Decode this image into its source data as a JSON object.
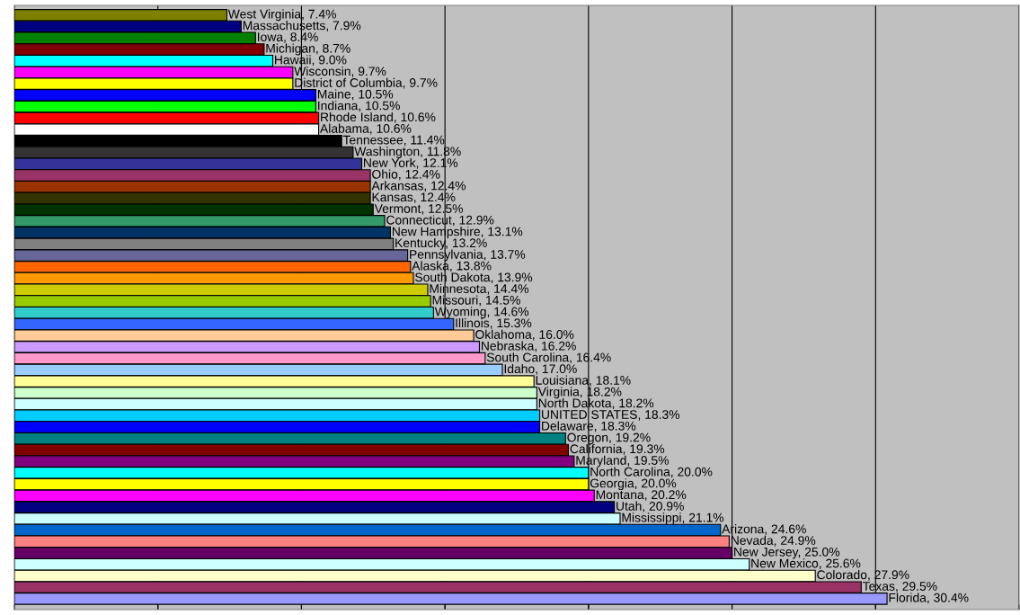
{
  "chart_data": {
    "type": "bar",
    "orientation": "horizontal",
    "categories": [
      null,
      null,
      null,
      null,
      null,
      null,
      null,
      null,
      null,
      null,
      null,
      null,
      null,
      null,
      null,
      null,
      null,
      null,
      null,
      null,
      null,
      null,
      null,
      null,
      null,
      null,
      null,
      null,
      null,
      null,
      null,
      null,
      null,
      null,
      null,
      null,
      null,
      null,
      null,
      null,
      null,
      null,
      null,
      null,
      null,
      null,
      null,
      null,
      null,
      null,
      null,
      null
    ],
    "values": [
      7.4,
      7.9,
      8.4,
      8.7,
      9.0,
      9.7,
      9.7,
      10.5,
      10.5,
      10.6,
      10.6,
      11.4,
      11.8,
      12.1,
      12.4,
      12.4,
      12.4,
      12.5,
      12.9,
      13.1,
      13.2,
      13.7,
      13.8,
      13.9,
      14.4,
      14.5,
      14.6,
      15.3,
      16.0,
      16.2,
      16.4,
      17.0,
      18.1,
      18.2,
      18.2,
      18.3,
      18.3,
      19.2,
      19.3,
      19.5,
      20.0,
      20.0,
      20.2,
      20.9,
      21.1,
      24.6,
      24.9,
      25.0,
      25.6,
      27.9,
      29.5,
      30.4
    ],
    "value_labels": [
      "West Virginia, 7.4%",
      "Massachusetts, 7.9%",
      "Iowa, 8.4%",
      "Michigan, 8.7%",
      "Hawaii, 9.0%",
      "Wisconsin, 9.7%",
      "District of Columbia, 9.7%",
      "Maine, 10.5%",
      "Indiana, 10.5%",
      "Rhode Island, 10.6%",
      "Alabama, 10.6%",
      "Tennessee, 11.4%",
      "Washington, 11.8%",
      "New York, 12.1%",
      "Ohio, 12.4%",
      "Arkansas, 12.4%",
      "Kansas, 12.4%",
      "Vermont, 12.5%",
      "Connecticut, 12.9%",
      "New Hampshire, 13.1%",
      "Kentucky, 13.2%",
      "Pennsylvania, 13.7%",
      "Alaska, 13.8%",
      "South Dakota, 13.9%",
      "Minnesota, 14.4%",
      "Missouri, 14.5%",
      "Wyoming, 14.6%",
      "Illinois, 15.3%",
      "Oklahoma, 16.0%",
      "Nebraska, 16.2%",
      "South Carolina, 16.4%",
      "Idaho, 17.0%",
      "Louisiana, 18.1%",
      "Virginia, 18.2%",
      "North Dakota, 18.2%",
      "UNITED STATES, 18.3%",
      "Delaware, 18.3%",
      "Oregon, 19.2%",
      "California, 19.3%",
      "Maryland, 19.5%",
      "North Carolina, 20.0%",
      "Georgia, 20.0%",
      "Montana, 20.2%",
      "Utah, 20.9%",
      "Mississippi, 21.1%",
      "Arizona, 24.6%",
      "Nevada, 24.9%",
      "New Jersey, 25.0%",
      "New Mexico, 25.6%",
      "Colorado, 27.9%",
      "Texas, 29.5%",
      "Florida, 30.4%"
    ],
    "colors": [
      "#808000",
      "#000080",
      "#008000",
      "#800000",
      "#00ffff",
      "#ff00ff",
      "#ffff00",
      "#0000ff",
      "#00ff00",
      "#ff0000",
      "#ffffff",
      "#000000",
      "#333333",
      "#333399",
      "#993366",
      "#993300",
      "#333300",
      "#003300",
      "#339966",
      "#003366",
      "#808080",
      "#666699",
      "#ff6600",
      "#ff9900",
      "#cccc00",
      "#99cc00",
      "#33cccc",
      "#3366ff",
      "#ffcc99",
      "#cc99ff",
      "#ff99cc",
      "#99ccff",
      "#ffff99",
      "#ccffcc",
      "#ccffff",
      "#00ccff",
      "#0000ff",
      "#008080",
      "#800000",
      "#800080",
      "#00ffff",
      "#ffff00",
      "#ff00ff",
      "#000080",
      "#ccffff",
      "#0066cc",
      "#ff8080",
      "#660066",
      "#ccffff",
      "#ffffcc",
      "#993366",
      "#9999ff"
    ],
    "xlim": [
      0,
      35
    ],
    "xticks": [
      {
        "value": 0,
        "label": null
      },
      {
        "value": 5,
        "label": null
      },
      {
        "value": 10,
        "label": null
      },
      {
        "value": 15,
        "label": null
      },
      {
        "value": 20,
        "label": null
      },
      {
        "value": 25,
        "label": null
      },
      {
        "value": 30,
        "label": null
      },
      {
        "value": 35,
        "label": null
      }
    ],
    "grid": "x"
  }
}
